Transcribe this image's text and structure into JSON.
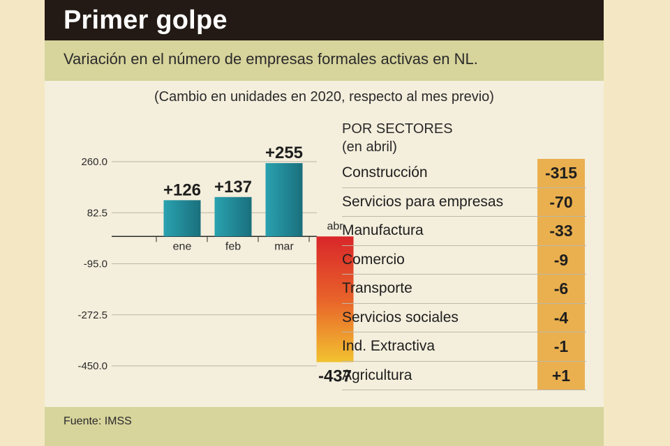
{
  "header": {
    "title": "Primer golpe",
    "subtitle": "Variación en el número de empresas formales activas en NL.",
    "note": "(Cambio en unidades en 2020, respecto al mes previo)"
  },
  "chart_data": {
    "type": "bar",
    "categories": [
      "ene",
      "feb",
      "mar",
      "abr"
    ],
    "values": [
      126,
      137,
      255,
      -437
    ],
    "value_labels": [
      "+126",
      "+137",
      "+255",
      "-437"
    ],
    "yticks": [
      260.0,
      82.5,
      -95.0,
      -272.5,
      -450.0
    ],
    "ytick_labels": [
      "260.0",
      "82.5",
      "-95.0",
      "-272.5",
      "-450.0"
    ],
    "ylim": [
      -450,
      260
    ],
    "grid": true,
    "colors": {
      "positive": "#1f7f8c",
      "positive_light": "#2aa2b0",
      "negative_top": "#d9262a",
      "negative_bottom": "#f2c230"
    }
  },
  "sectors": {
    "heading_line1": "POR SECTORES",
    "heading_line2": "(en abril)",
    "rows": [
      {
        "name": "Construcción",
        "value": "-315"
      },
      {
        "name": "Servicios para empresas",
        "value": "-70"
      },
      {
        "name": "Manufactura",
        "value": "-33"
      },
      {
        "name": "Comercio",
        "value": "-9"
      },
      {
        "name": "Transporte",
        "value": "-6"
      },
      {
        "name": "Servicios sociales",
        "value": "-4"
      },
      {
        "name": "Ind. Extractiva",
        "value": "-1"
      },
      {
        "name": "Agricultura",
        "value": "+1"
      }
    ],
    "highlight_color": "#eab04f"
  },
  "footer": {
    "source": "Fuente: IMSS"
  }
}
